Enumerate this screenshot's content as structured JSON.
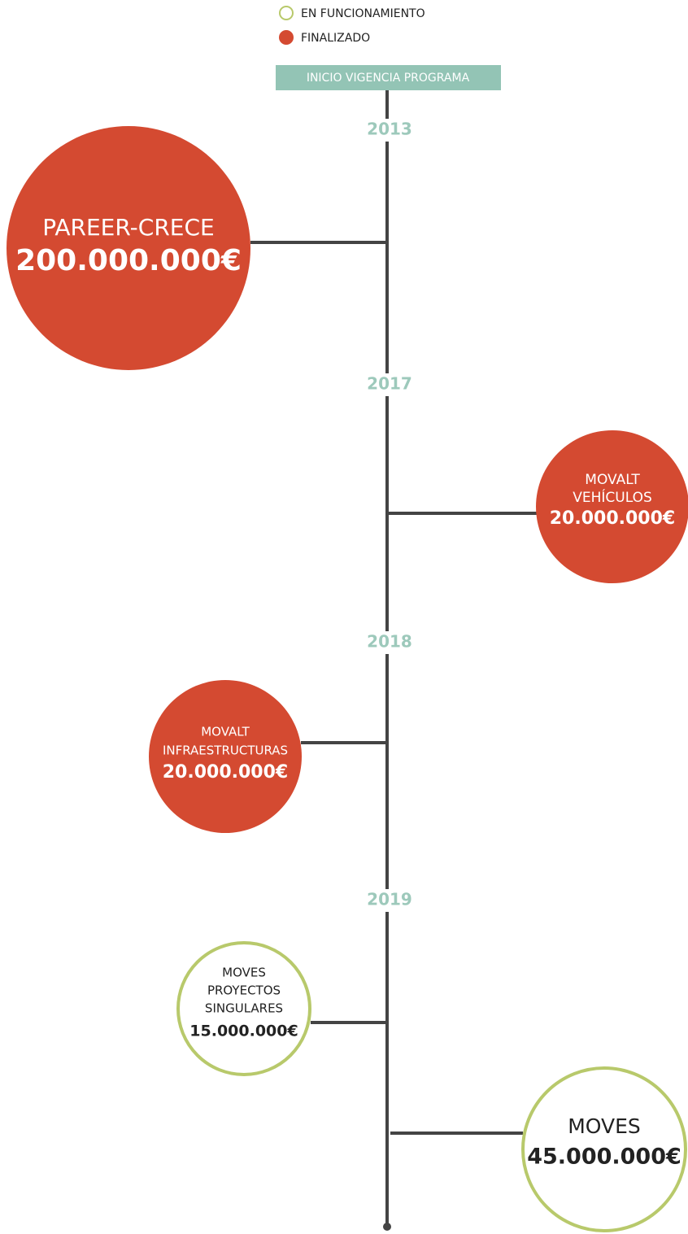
{
  "legend": [
    {
      "label": "EN FUNCIONAMIENTO",
      "color": "#b8c96b",
      "filled": false
    },
    {
      "label": "FINALIZADO",
      "color": "#d44a31",
      "filled": true
    }
  ],
  "header": {
    "label": "INICIO VIGENCIA PROGRAMA",
    "color": "#93c4b5"
  },
  "years": [
    "2013",
    "2017",
    "2018",
    "2019"
  ],
  "nodes": [
    {
      "lines": [
        "PAREER-CRECE"
      ],
      "amount": "200.000.000€",
      "color": "#d44a31",
      "filled": true
    },
    {
      "lines": [
        "MOVALT",
        "VEHÍCULOS"
      ],
      "amount": "20.000.000€",
      "color": "#d44a31",
      "filled": true
    },
    {
      "lines": [
        "MOVALT",
        "INFRAESTRUCTURAS"
      ],
      "amount": "20.000.000€",
      "color": "#d44a31",
      "filled": true
    },
    {
      "lines": [
        "MOVES",
        "PROYECTOS",
        "SINGULARES"
      ],
      "amount": "15.000.000€",
      "color": "#b8c96b",
      "filled": false
    },
    {
      "lines": [
        "MOVES"
      ],
      "amount": "45.000.000€",
      "color": "#b8c96b",
      "filled": false
    }
  ]
}
